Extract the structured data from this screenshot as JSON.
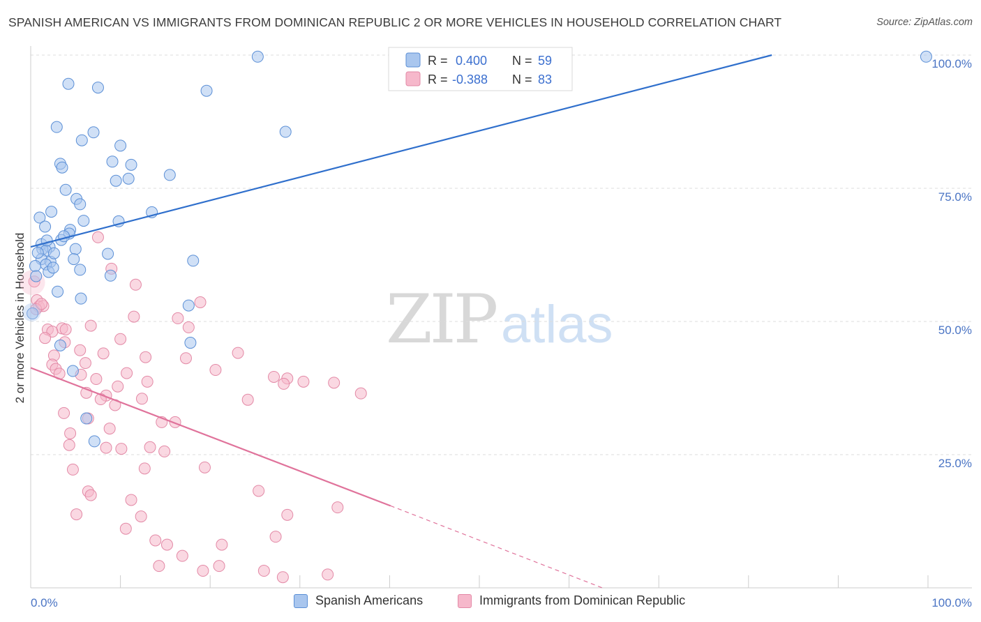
{
  "title": "SPANISH AMERICAN VS IMMIGRANTS FROM DOMINICAN REPUBLIC 2 OR MORE VEHICLES IN HOUSEHOLD CORRELATION CHART",
  "source": "Source: ZipAtlas.com",
  "watermark": {
    "zip": "ZIP",
    "atlas": "atlas"
  },
  "colors": {
    "blue_fill": "#a9c6ee",
    "blue_stroke": "#5b8fd6",
    "blue_line": "#2f6fcc",
    "pink_fill": "#f6b8cb",
    "pink_stroke": "#e389a6",
    "pink_line": "#e0739b",
    "tick_text": "#4a74c4",
    "grid": "#dddddd"
  },
  "legend": {
    "rows": [
      {
        "r_label": "R =",
        "r_value": "0.400",
        "n_label": "N =",
        "n_value": "59"
      },
      {
        "r_label": "R =",
        "r_value": "-0.388",
        "n_label": "N =",
        "n_value": "83"
      }
    ]
  },
  "bottom_legend": [
    "Spanish Americans",
    "Immigrants from Dominican Republic"
  ],
  "chart_data": {
    "type": "scatter",
    "ylabel": "2 or more Vehicles in Household",
    "xlim": [
      0,
      100
    ],
    "ylim": [
      0,
      100
    ],
    "x_tick_labels": [
      "0.0%",
      "100.0%"
    ],
    "y_tick_labels": [
      "100.0%",
      "75.0%",
      "50.0%",
      "25.0%"
    ],
    "y_tick_values": [
      100,
      75,
      50,
      25
    ],
    "grid": "horizontal dashed",
    "series": [
      {
        "name": "Spanish Americans",
        "r": 0.4,
        "n": 59,
        "trend": {
          "x": [
            0,
            82.6
          ],
          "y": [
            64,
            100
          ]
        },
        "points": [
          [
            25.3,
            99.7
          ],
          [
            99.8,
            99.7
          ],
          [
            4.2,
            94.6
          ],
          [
            7.5,
            93.9
          ],
          [
            19.6,
            93.3
          ],
          [
            2.9,
            86.5
          ],
          [
            7.0,
            85.5
          ],
          [
            28.4,
            85.6
          ],
          [
            5.7,
            84.0
          ],
          [
            10.0,
            83.0
          ],
          [
            3.3,
            79.6
          ],
          [
            3.5,
            78.9
          ],
          [
            9.1,
            80.0
          ],
          [
            11.2,
            79.4
          ],
          [
            15.5,
            77.5
          ],
          [
            10.9,
            76.8
          ],
          [
            9.5,
            76.4
          ],
          [
            3.9,
            74.7
          ],
          [
            5.1,
            73.0
          ],
          [
            5.5,
            72.0
          ],
          [
            2.3,
            70.6
          ],
          [
            13.5,
            70.5
          ],
          [
            1.0,
            69.5
          ],
          [
            5.9,
            68.9
          ],
          [
            9.8,
            68.8
          ],
          [
            1.6,
            67.8
          ],
          [
            4.4,
            67.2
          ],
          [
            4.3,
            66.5
          ],
          [
            3.4,
            65.3
          ],
          [
            1.2,
            64.5
          ],
          [
            2.1,
            64.0
          ],
          [
            1.3,
            63.6
          ],
          [
            1.7,
            63.3
          ],
          [
            5.0,
            63.6
          ],
          [
            8.6,
            62.7
          ],
          [
            1.2,
            61.7
          ],
          [
            2.2,
            61.2
          ],
          [
            18.1,
            61.4
          ],
          [
            1.7,
            60.7
          ],
          [
            0.5,
            60.4
          ],
          [
            5.5,
            59.7
          ],
          [
            2.0,
            59.3
          ],
          [
            8.9,
            58.6
          ],
          [
            0.6,
            58.5
          ],
          [
            3.0,
            55.6
          ],
          [
            5.6,
            54.3
          ],
          [
            17.6,
            53.0
          ],
          [
            0.2,
            51.5
          ],
          [
            3.3,
            45.5
          ],
          [
            17.8,
            46.0
          ],
          [
            4.7,
            40.7
          ],
          [
            6.2,
            31.8
          ],
          [
            7.1,
            27.5
          ],
          [
            2.6,
            62.8
          ],
          [
            1.8,
            65.2
          ],
          [
            3.7,
            66.0
          ],
          [
            0.8,
            62.9
          ],
          [
            4.8,
            61.7
          ],
          [
            2.5,
            60.1
          ]
        ]
      },
      {
        "name": "Immigrants from Dominican Republic",
        "r": -0.388,
        "n": 83,
        "trend": {
          "x": [
            0,
            40.1
          ],
          "y": [
            41.3,
            15.4
          ]
        },
        "trend_dashed": {
          "x": [
            40.1,
            63.7
          ],
          "y": [
            15.4,
            0
          ]
        },
        "points": [
          [
            7.5,
            65.8
          ],
          [
            9.0,
            59.9
          ],
          [
            0.4,
            57.5
          ],
          [
            11.7,
            56.9
          ],
          [
            18.9,
            53.6
          ],
          [
            0.7,
            54.0
          ],
          [
            0.9,
            52.8
          ],
          [
            1.4,
            52.9
          ],
          [
            0.6,
            52.3
          ],
          [
            11.5,
            50.9
          ],
          [
            16.4,
            50.6
          ],
          [
            6.7,
            49.2
          ],
          [
            17.6,
            48.9
          ],
          [
            1.9,
            48.5
          ],
          [
            3.5,
            48.7
          ],
          [
            2.4,
            48.1
          ],
          [
            1.6,
            46.9
          ],
          [
            10.0,
            46.7
          ],
          [
            3.8,
            46.1
          ],
          [
            5.5,
            44.6
          ],
          [
            23.1,
            44.1
          ],
          [
            8.1,
            44.0
          ],
          [
            2.6,
            43.6
          ],
          [
            12.8,
            43.3
          ],
          [
            17.3,
            43.1
          ],
          [
            6.1,
            42.2
          ],
          [
            2.4,
            41.9
          ],
          [
            2.8,
            41.1
          ],
          [
            20.6,
            40.9
          ],
          [
            3.2,
            40.2
          ],
          [
            10.7,
            40.3
          ],
          [
            5.6,
            40.0
          ],
          [
            7.3,
            39.2
          ],
          [
            27.1,
            39.6
          ],
          [
            28.6,
            39.3
          ],
          [
            13.0,
            38.7
          ],
          [
            30.4,
            38.7
          ],
          [
            28.2,
            38.3
          ],
          [
            33.8,
            38.5
          ],
          [
            9.7,
            37.8
          ],
          [
            36.8,
            36.5
          ],
          [
            6.2,
            36.6
          ],
          [
            8.4,
            36.1
          ],
          [
            12.4,
            35.5
          ],
          [
            7.8,
            35.4
          ],
          [
            24.2,
            35.3
          ],
          [
            9.4,
            34.3
          ],
          [
            3.7,
            32.8
          ],
          [
            6.4,
            31.8
          ],
          [
            14.6,
            31.1
          ],
          [
            16.1,
            31.1
          ],
          [
            8.8,
            29.9
          ],
          [
            4.4,
            29.0
          ],
          [
            4.3,
            26.8
          ],
          [
            8.4,
            26.3
          ],
          [
            10.1,
            26.1
          ],
          [
            13.3,
            26.4
          ],
          [
            14.9,
            25.6
          ],
          [
            4.7,
            22.2
          ],
          [
            12.7,
            22.4
          ],
          [
            19.4,
            22.6
          ],
          [
            6.4,
            18.1
          ],
          [
            25.4,
            18.2
          ],
          [
            6.7,
            17.4
          ],
          [
            11.2,
            16.5
          ],
          [
            34.2,
            15.1
          ],
          [
            5.1,
            13.8
          ],
          [
            12.3,
            13.4
          ],
          [
            28.6,
            13.7
          ],
          [
            10.6,
            11.1
          ],
          [
            27.3,
            9.6
          ],
          [
            13.9,
            8.9
          ],
          [
            15.2,
            8.1
          ],
          [
            21.3,
            8.1
          ],
          [
            16.9,
            6.0
          ],
          [
            14.3,
            4.1
          ],
          [
            21.0,
            4.1
          ],
          [
            19.2,
            3.2
          ],
          [
            26.0,
            3.2
          ],
          [
            33.1,
            2.5
          ],
          [
            28.1,
            2.0
          ],
          [
            1.2,
            53.3
          ],
          [
            3.9,
            48.5
          ]
        ]
      }
    ]
  }
}
